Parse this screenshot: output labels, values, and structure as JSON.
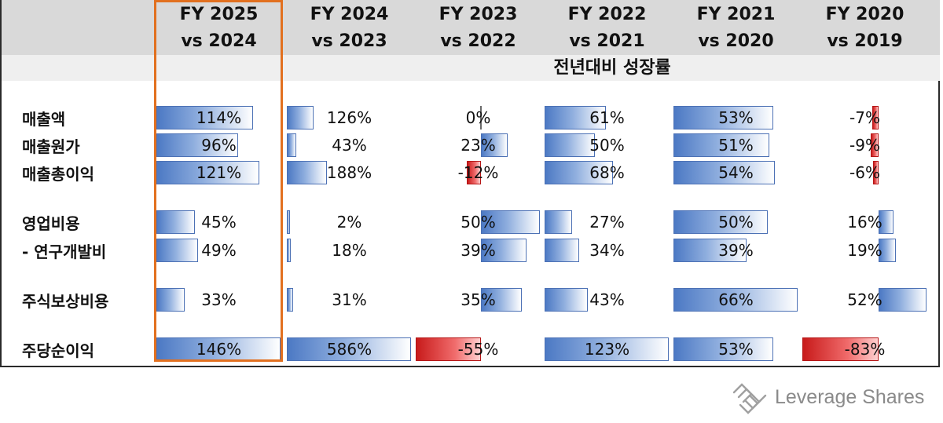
{
  "chart_data": {
    "type": "table",
    "subheader": "전년대비 성장률",
    "columns": [
      {
        "line1": "FY 2025",
        "line2": "vs 2024"
      },
      {
        "line1": "FY 2024",
        "line2": "vs 2023"
      },
      {
        "line1": "FY 2023",
        "line2": "vs 2022"
      },
      {
        "line1": "FY 2022",
        "line2": "vs 2021"
      },
      {
        "line1": "FY 2021",
        "line2": "vs 2020"
      },
      {
        "line1": "FY 2020",
        "line2": "vs 2019"
      }
    ],
    "rows": [
      {
        "label": "매출액",
        "values": [
          114,
          126,
          0,
          61,
          53,
          -7
        ]
      },
      {
        "label": "매출원가",
        "values": [
          96,
          43,
          23,
          50,
          51,
          -9
        ]
      },
      {
        "label": "매출총이익",
        "values": [
          121,
          188,
          -12,
          68,
          54,
          -6
        ]
      },
      {
        "label": "영업비용",
        "values": [
          45,
          2,
          50,
          27,
          50,
          16
        ]
      },
      {
        "label": " - 연구개발비",
        "values": [
          49,
          18,
          39,
          34,
          39,
          19
        ]
      },
      {
        "label": "주식보상비용",
        "values": [
          33,
          31,
          35,
          43,
          66,
          52
        ]
      },
      {
        "label": "주당순이익",
        "values": [
          146,
          586,
          -55,
          123,
          53,
          -83
        ]
      }
    ],
    "value_suffix": "%",
    "highlighted_column": "FY 2025 vs 2024",
    "colors": {
      "positive": "#4c79c4",
      "negative": "#d42020",
      "highlight": "#e2701f"
    }
  },
  "brand": {
    "name": "Leverage Shares"
  }
}
